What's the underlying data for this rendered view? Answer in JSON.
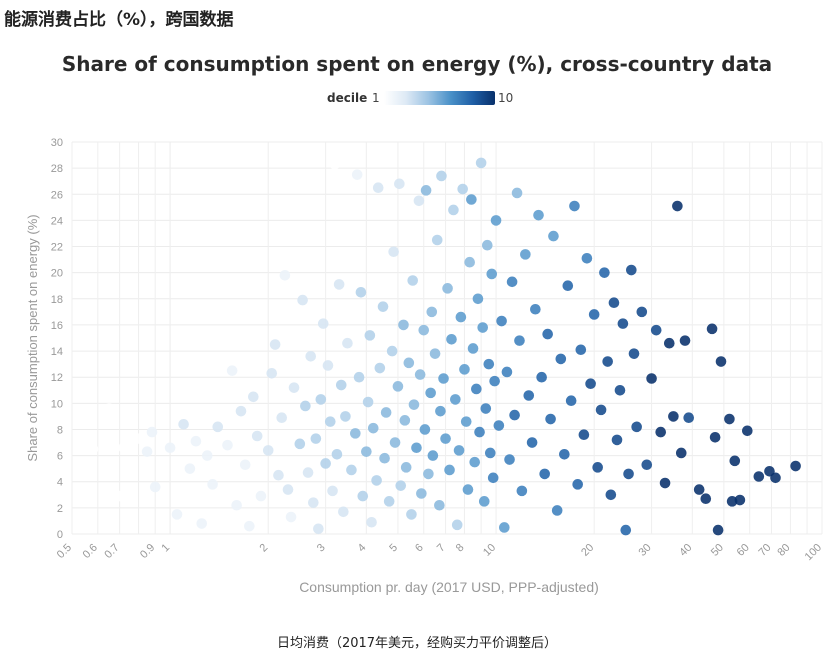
{
  "cn_title": "能源消费占比（%），跨国数据",
  "cn_xlabel": "日均消费（2017年美元，经购买力平价调整后）",
  "legend": {
    "title": "decile",
    "min_label": "1",
    "max_label": "10"
  },
  "chart_data": {
    "type": "scatter",
    "title": "Share of consumption spent on energy (%), cross-country data",
    "xlabel": "Consumption pr. day (2017 USD, PPP-adjusted)",
    "ylabel": "Share of consumption spent on energy (%)",
    "xscale": "log",
    "xlim": [
      0.5,
      100
    ],
    "ylim": [
      0,
      30
    ],
    "x_ticks": [
      0.5,
      0.6,
      0.7,
      0.9,
      1,
      2,
      3,
      4,
      5,
      6,
      7,
      8,
      10,
      20,
      30,
      40,
      50,
      60,
      70,
      80,
      100
    ],
    "x_tick_labels": [
      "0.5",
      "0.6",
      "0.7",
      "0.9",
      "1",
      "2",
      "3",
      "4",
      "5",
      "6",
      "7",
      "8",
      "10",
      "20",
      "30",
      "40",
      "50",
      "60",
      "70",
      "80",
      "100"
    ],
    "y_ticks": [
      0,
      2,
      4,
      6,
      8,
      10,
      12,
      14,
      16,
      18,
      20,
      22,
      24,
      26,
      28,
      30
    ],
    "y_tick_labels": [
      "0",
      "2",
      "4",
      "6",
      "8",
      "10",
      "12",
      "14",
      "16",
      "18",
      "20",
      "22",
      "24",
      "26",
      "28",
      "30"
    ],
    "color_variable": "decile",
    "color_range": [
      1,
      10
    ],
    "colors": [
      "#ffffff",
      "#dde9f5",
      "#9cc3e3",
      "#4a91c8",
      "#1f5fa6",
      "#08306b"
    ],
    "points": [
      [
        0.55,
        1.3,
        1
      ],
      [
        0.58,
        6.5,
        1
      ],
      [
        0.65,
        9.6,
        1
      ],
      [
        0.7,
        2.9,
        1
      ],
      [
        0.72,
        6.6,
        1
      ],
      [
        0.8,
        7.3,
        1
      ],
      [
        0.85,
        6.3,
        2
      ],
      [
        0.88,
        7.8,
        2
      ],
      [
        0.9,
        3.6,
        2
      ],
      [
        0.95,
        0.6,
        1
      ],
      [
        1.0,
        6.6,
        2
      ],
      [
        1.05,
        1.5,
        2
      ],
      [
        1.1,
        8.4,
        3
      ],
      [
        1.15,
        5.0,
        2
      ],
      [
        1.2,
        7.1,
        2
      ],
      [
        1.25,
        0.8,
        2
      ],
      [
        1.3,
        6.0,
        2
      ],
      [
        1.35,
        3.8,
        2
      ],
      [
        1.4,
        8.2,
        3
      ],
      [
        1.5,
        6.8,
        2
      ],
      [
        1.55,
        12.5,
        2
      ],
      [
        1.6,
        2.2,
        2
      ],
      [
        1.65,
        9.4,
        3
      ],
      [
        1.7,
        5.3,
        2
      ],
      [
        1.75,
        0.6,
        2
      ],
      [
        1.8,
        10.5,
        3
      ],
      [
        1.85,
        7.5,
        3
      ],
      [
        1.9,
        2.9,
        2
      ],
      [
        2.0,
        6.4,
        3
      ],
      [
        2.05,
        12.3,
        3
      ],
      [
        2.1,
        14.5,
        3
      ],
      [
        2.15,
        4.5,
        3
      ],
      [
        2.2,
        8.9,
        3
      ],
      [
        2.25,
        19.8,
        2
      ],
      [
        2.3,
        3.4,
        3
      ],
      [
        2.35,
        1.3,
        2
      ],
      [
        2.4,
        11.2,
        3
      ],
      [
        2.5,
        6.9,
        4
      ],
      [
        2.55,
        17.9,
        3
      ],
      [
        2.6,
        9.8,
        4
      ],
      [
        2.65,
        4.7,
        3
      ],
      [
        2.7,
        13.6,
        3
      ],
      [
        2.75,
        2.4,
        3
      ],
      [
        2.8,
        7.3,
        4
      ],
      [
        2.85,
        0.4,
        3
      ],
      [
        2.9,
        10.3,
        4
      ],
      [
        2.95,
        16.1,
        3
      ],
      [
        3.0,
        5.4,
        4
      ],
      [
        3.05,
        12.9,
        3
      ],
      [
        3.1,
        8.6,
        4
      ],
      [
        3.15,
        3.3,
        3
      ],
      [
        3.2,
        28.3,
        1
      ],
      [
        3.25,
        6.1,
        4
      ],
      [
        3.3,
        19.1,
        3
      ],
      [
        3.35,
        11.4,
        4
      ],
      [
        3.4,
        1.7,
        3
      ],
      [
        3.45,
        9.0,
        4
      ],
      [
        3.5,
        14.6,
        3
      ],
      [
        3.6,
        4.9,
        4
      ],
      [
        3.7,
        7.7,
        5
      ],
      [
        3.75,
        27.5,
        2
      ],
      [
        3.8,
        12.0,
        4
      ],
      [
        3.85,
        18.5,
        4
      ],
      [
        3.9,
        2.9,
        4
      ],
      [
        4.0,
        6.3,
        5
      ],
      [
        4.05,
        10.1,
        4
      ],
      [
        4.1,
        15.2,
        4
      ],
      [
        4.15,
        0.9,
        3
      ],
      [
        4.2,
        8.1,
        5
      ],
      [
        4.3,
        4.1,
        4
      ],
      [
        4.35,
        26.5,
        3
      ],
      [
        4.4,
        12.7,
        4
      ],
      [
        4.5,
        17.4,
        4
      ],
      [
        4.55,
        5.8,
        5
      ],
      [
        4.6,
        9.3,
        5
      ],
      [
        4.7,
        2.5,
        4
      ],
      [
        4.8,
        14.0,
        4
      ],
      [
        4.85,
        21.6,
        3
      ],
      [
        4.9,
        7.0,
        5
      ],
      [
        5.0,
        11.3,
        5
      ],
      [
        5.05,
        26.8,
        3
      ],
      [
        5.1,
        3.7,
        4
      ],
      [
        5.2,
        16.0,
        5
      ],
      [
        5.25,
        8.7,
        5
      ],
      [
        5.3,
        5.1,
        5
      ],
      [
        5.4,
        13.1,
        5
      ],
      [
        5.5,
        1.5,
        4
      ],
      [
        5.55,
        19.4,
        4
      ],
      [
        5.6,
        9.9,
        5
      ],
      [
        5.7,
        6.6,
        6
      ],
      [
        5.8,
        25.5,
        3
      ],
      [
        5.85,
        12.2,
        5
      ],
      [
        5.9,
        3.1,
        5
      ],
      [
        6.0,
        15.6,
        5
      ],
      [
        6.05,
        8.0,
        6
      ],
      [
        6.1,
        26.3,
        5
      ],
      [
        6.2,
        4.6,
        5
      ],
      [
        6.3,
        10.8,
        6
      ],
      [
        6.35,
        17.0,
        5
      ],
      [
        6.4,
        6.0,
        6
      ],
      [
        6.5,
        13.8,
        5
      ],
      [
        6.6,
        22.5,
        4
      ],
      [
        6.7,
        2.2,
        5
      ],
      [
        6.75,
        9.4,
        6
      ],
      [
        6.8,
        27.4,
        4
      ],
      [
        6.9,
        11.9,
        6
      ],
      [
        7.0,
        7.3,
        6
      ],
      [
        7.1,
        18.8,
        5
      ],
      [
        7.2,
        4.9,
        6
      ],
      [
        7.3,
        14.9,
        6
      ],
      [
        7.4,
        24.8,
        4
      ],
      [
        7.5,
        10.3,
        6
      ],
      [
        7.6,
        0.7,
        4
      ],
      [
        7.7,
        6.4,
        6
      ],
      [
        7.8,
        16.6,
        6
      ],
      [
        7.9,
        26.4,
        4
      ],
      [
        8.0,
        12.6,
        6
      ],
      [
        8.1,
        8.6,
        6
      ],
      [
        8.2,
        3.4,
        6
      ],
      [
        8.3,
        20.8,
        5
      ],
      [
        8.4,
        25.6,
        6
      ],
      [
        8.5,
        14.2,
        6
      ],
      [
        8.6,
        5.5,
        6
      ],
      [
        8.7,
        11.1,
        7
      ],
      [
        8.8,
        18.0,
        6
      ],
      [
        8.9,
        7.8,
        7
      ],
      [
        9.0,
        28.4,
        4
      ],
      [
        9.1,
        15.8,
        6
      ],
      [
        9.2,
        2.5,
        6
      ],
      [
        9.3,
        9.6,
        7
      ],
      [
        9.4,
        22.1,
        5
      ],
      [
        9.5,
        13.0,
        7
      ],
      [
        9.6,
        6.2,
        7
      ],
      [
        9.7,
        19.9,
        6
      ],
      [
        9.8,
        4.3,
        7
      ],
      [
        9.9,
        11.7,
        7
      ],
      [
        10.0,
        24.0,
        6
      ],
      [
        10.2,
        8.3,
        7
      ],
      [
        10.4,
        16.3,
        7
      ],
      [
        10.6,
        0.5,
        6
      ],
      [
        10.8,
        12.4,
        7
      ],
      [
        11.0,
        5.7,
        7
      ],
      [
        11.2,
        19.3,
        7
      ],
      [
        11.4,
        9.1,
        8
      ],
      [
        11.6,
        26.1,
        5
      ],
      [
        11.8,
        14.8,
        7
      ],
      [
        12.0,
        3.3,
        7
      ],
      [
        12.3,
        21.4,
        6
      ],
      [
        12.6,
        10.6,
        8
      ],
      [
        12.9,
        7.0,
        8
      ],
      [
        13.2,
        17.2,
        7
      ],
      [
        13.5,
        24.4,
        6
      ],
      [
        13.8,
        12.0,
        8
      ],
      [
        14.1,
        4.6,
        8
      ],
      [
        14.4,
        15.3,
        8
      ],
      [
        14.7,
        8.8,
        8
      ],
      [
        15.0,
        22.8,
        6
      ],
      [
        15.4,
        1.8,
        7
      ],
      [
        15.8,
        13.4,
        8
      ],
      [
        16.2,
        6.1,
        8
      ],
      [
        16.6,
        19.0,
        8
      ],
      [
        17.0,
        10.2,
        8
      ],
      [
        17.4,
        25.1,
        7
      ],
      [
        17.8,
        3.8,
        8
      ],
      [
        18.2,
        14.1,
        8
      ],
      [
        18.6,
        7.6,
        9
      ],
      [
        19.0,
        21.1,
        7
      ],
      [
        19.5,
        11.5,
        9
      ],
      [
        20.0,
        16.8,
        8
      ],
      [
        20.5,
        5.1,
        9
      ],
      [
        21.0,
        9.5,
        9
      ],
      [
        21.5,
        20.0,
        8
      ],
      [
        22.0,
        13.2,
        9
      ],
      [
        22.5,
        3.0,
        9
      ],
      [
        23.0,
        17.7,
        9
      ],
      [
        23.5,
        7.2,
        9
      ],
      [
        24.0,
        11.0,
        9
      ],
      [
        24.5,
        16.1,
        9
      ],
      [
        25.0,
        0.3,
        8
      ],
      [
        25.5,
        4.6,
        9
      ],
      [
        26.0,
        20.2,
        9
      ],
      [
        26.5,
        13.8,
        9
      ],
      [
        27.0,
        8.2,
        9
      ],
      [
        28.0,
        17.0,
        9
      ],
      [
        29.0,
        5.3,
        9
      ],
      [
        30.0,
        11.9,
        10
      ],
      [
        31.0,
        15.6,
        9
      ],
      [
        32.0,
        7.8,
        10
      ],
      [
        33.0,
        3.9,
        10
      ],
      [
        34.0,
        14.6,
        10
      ],
      [
        35.0,
        9.0,
        10
      ],
      [
        36.0,
        25.1,
        10
      ],
      [
        37.0,
        6.2,
        10
      ],
      [
        38.0,
        14.8,
        10
      ],
      [
        39.0,
        8.9,
        9
      ],
      [
        42.0,
        3.4,
        10
      ],
      [
        44.0,
        2.7,
        10
      ],
      [
        46.0,
        15.7,
        10
      ],
      [
        47.0,
        7.4,
        10
      ],
      [
        48.0,
        0.3,
        10
      ],
      [
        49.0,
        13.2,
        10
      ],
      [
        52.0,
        8.8,
        10
      ],
      [
        53.0,
        2.5,
        10
      ],
      [
        54.0,
        5.6,
        10
      ],
      [
        56.0,
        2.6,
        10
      ],
      [
        59.0,
        7.9,
        10
      ],
      [
        64.0,
        4.4,
        10
      ],
      [
        69.0,
        4.8,
        10
      ],
      [
        72.0,
        4.3,
        10
      ],
      [
        83.0,
        5.2,
        10
      ]
    ]
  }
}
